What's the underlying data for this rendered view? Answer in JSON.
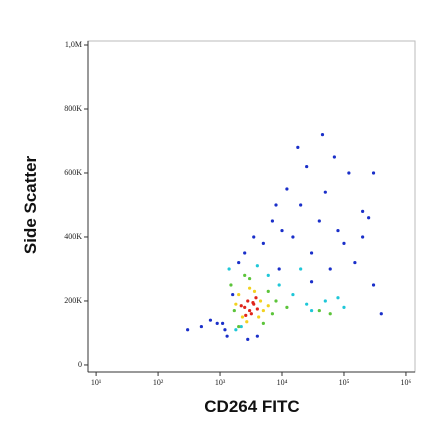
{
  "chart_data": {
    "type": "scatter",
    "xlabel": "CD264 FITC",
    "ylabel": "Side Scatter",
    "xscale": "log",
    "xlim": [
      7.4,
      1400000
    ],
    "ylim": [
      -22000,
      1012500
    ],
    "xticks": [
      {
        "value": 10,
        "label": "10¹"
      },
      {
        "value": 100,
        "label": "10²"
      },
      {
        "value": 1000,
        "label": "10³"
      },
      {
        "value": 10000,
        "label": "10⁴"
      },
      {
        "value": 100000,
        "label": "10⁵"
      },
      {
        "value": 1000000,
        "label": "10⁶"
      }
    ],
    "yticks": [
      0,
      {
        "value": 200000,
        "label": "200K"
      },
      {
        "value": 400000,
        "label": "400K"
      },
      {
        "value": 600000,
        "label": "600K"
      },
      {
        "value": 800000,
        "label": "800K"
      },
      {
        "value": 1000000,
        "label": "1,0M"
      }
    ],
    "series": [
      {
        "color": "#1a2fc9",
        "x": [
          1100,
          1300,
          1600,
          2000,
          2500,
          3500,
          5000,
          7000,
          10000,
          15000,
          20000,
          30000,
          40000,
          60000,
          80000,
          100000,
          150000,
          200000,
          250000,
          300000,
          400000,
          12000,
          25000,
          50000,
          120000,
          70000,
          18000,
          9000,
          4000,
          2800,
          1200,
          900,
          700,
          500,
          300,
          30000,
          300000,
          200000,
          8000,
          45000
        ],
        "y": [
          130000,
          90000,
          220000,
          320000,
          350000,
          400000,
          380000,
          450000,
          420000,
          400000,
          500000,
          350000,
          450000,
          300000,
          420000,
          380000,
          320000,
          400000,
          460000,
          250000,
          160000,
          550000,
          620000,
          540000,
          600000,
          650000,
          680000,
          300000,
          90000,
          80000,
          110000,
          130000,
          140000,
          120000,
          110000,
          260000,
          600000,
          480000,
          500000,
          720000
        ]
      },
      {
        "color": "#1fc7d8",
        "x": [
          1400,
          9000,
          15000,
          25000,
          50000,
          80000,
          1800,
          4000,
          6000,
          30000,
          100000,
          20000,
          2200
        ],
        "y": [
          300000,
          250000,
          220000,
          190000,
          200000,
          210000,
          110000,
          310000,
          280000,
          170000,
          180000,
          300000,
          120000
        ]
      },
      {
        "color": "#5cc43a",
        "x": [
          1500,
          6000,
          2000,
          7000,
          3000,
          1700,
          8000,
          2500,
          5000,
          12000,
          40000,
          60000
        ],
        "y": [
          250000,
          230000,
          120000,
          160000,
          270000,
          170000,
          200000,
          280000,
          130000,
          180000,
          170000,
          160000
        ]
      },
      {
        "color": "#f2d21f",
        "x": [
          2000,
          4500,
          2300,
          5000,
          3000,
          1800,
          4200,
          2700,
          3600,
          6000
        ],
        "y": [
          220000,
          200000,
          150000,
          170000,
          240000,
          190000,
          150000,
          135000,
          230000,
          185000
        ]
      },
      {
        "color": "#e0241a",
        "x": [
          2500,
          3000,
          3500,
          2800,
          4000,
          3200,
          2200,
          3800,
          2600,
          3400
        ],
        "y": [
          180000,
          170000,
          190000,
          200000,
          175000,
          160000,
          185000,
          210000,
          155000,
          195000
        ]
      }
    ]
  }
}
